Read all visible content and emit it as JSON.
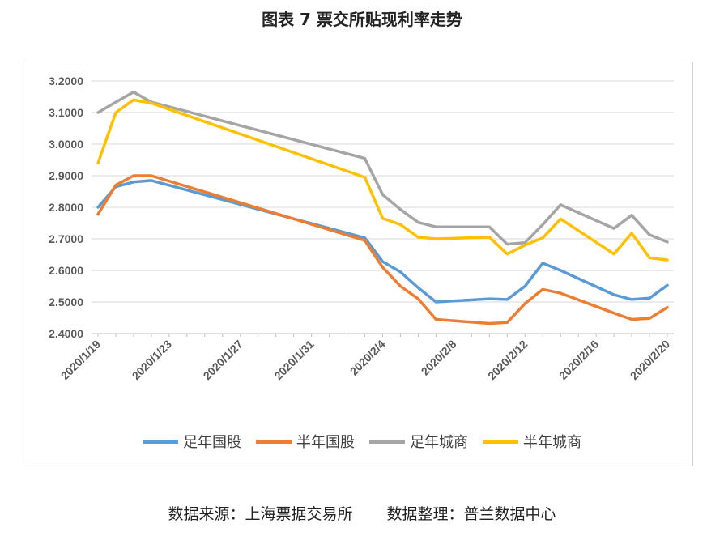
{
  "title": "图表 7  票交所贴现利率走势",
  "source": {
    "origin": "数据来源：上海票据交易所",
    "processing": "数据整理：普兰数据中心"
  },
  "chart_data": {
    "type": "line",
    "ylim": [
      2.4,
      3.2
    ],
    "yticks": [
      "3.2000",
      "3.1000",
      "3.0000",
      "2.9000",
      "2.8000",
      "2.7000",
      "2.6000",
      "2.5000",
      "2.4000"
    ],
    "xlim": [
      "2020/1/19",
      "2020/2/20"
    ],
    "xticks": [
      "2020/1/19",
      "2020/1/23",
      "2020/1/27",
      "2020/1/31",
      "2020/2/4",
      "2020/2/8",
      "2020/2/12",
      "2020/2/16",
      "2020/2/20"
    ],
    "grid": "horizontal",
    "legend_position": "bottom",
    "x": [
      "2020/1/19",
      "2020/1/20",
      "2020/1/21",
      "2020/1/22",
      "2020/2/3",
      "2020/2/4",
      "2020/2/5",
      "2020/2/6",
      "2020/2/7",
      "2020/2/10",
      "2020/2/11",
      "2020/2/12",
      "2020/2/13",
      "2020/2/14",
      "2020/2/17",
      "2020/2/18",
      "2020/2/19",
      "2020/2/20"
    ],
    "series": [
      {
        "name": "足年国股",
        "color": "#5B9BD5",
        "values": [
          2.8,
          2.865,
          2.88,
          2.885,
          2.703,
          2.628,
          2.595,
          2.545,
          2.5,
          2.51,
          2.508,
          2.55,
          2.623,
          2.6,
          2.523,
          2.508,
          2.512,
          2.553
        ]
      },
      {
        "name": "半年国股",
        "color": "#ED7D31",
        "values": [
          2.778,
          2.87,
          2.9,
          2.9,
          2.695,
          2.61,
          2.55,
          2.51,
          2.445,
          2.432,
          2.435,
          2.495,
          2.54,
          2.528,
          2.465,
          2.445,
          2.448,
          2.483
        ]
      },
      {
        "name": "足年城商",
        "color": "#A5A5A5",
        "values": [
          3.1,
          3.133,
          3.165,
          3.133,
          2.955,
          2.84,
          2.793,
          2.752,
          2.738,
          2.738,
          2.683,
          2.688,
          2.745,
          2.808,
          2.733,
          2.775,
          2.713,
          2.69
        ]
      },
      {
        "name": "半年城商",
        "color": "#FFC000",
        "values": [
          2.94,
          3.1,
          3.14,
          3.13,
          2.895,
          2.765,
          2.745,
          2.705,
          2.7,
          2.705,
          2.652,
          2.68,
          2.703,
          2.763,
          2.652,
          2.718,
          2.64,
          2.633
        ]
      }
    ]
  }
}
